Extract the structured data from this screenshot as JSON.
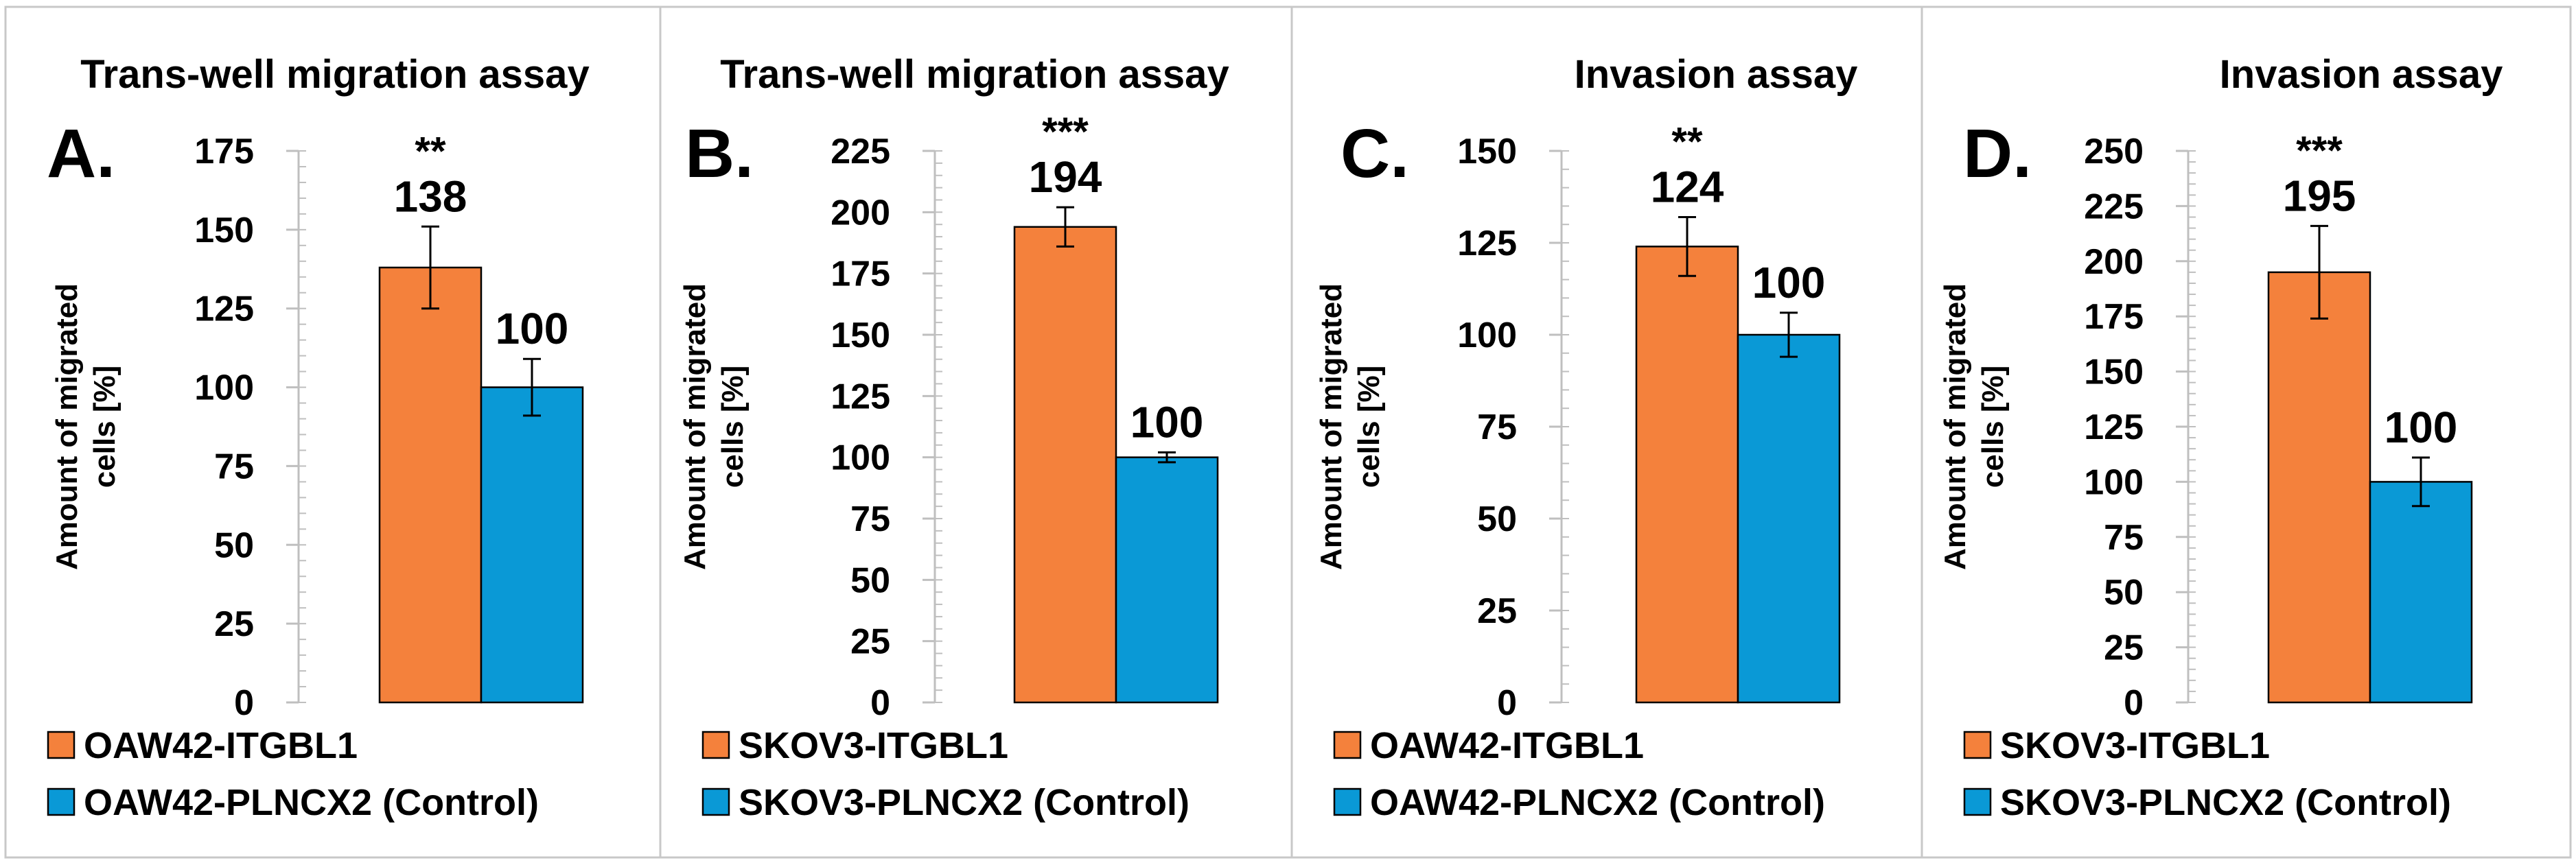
{
  "figure": {
    "colors": {
      "itgbl1": "#F4813C",
      "control": "#0A99D6",
      "axis": "#BFBFBF",
      "panel_border": "#C8C8C8",
      "text": "#000000"
    }
  },
  "chart_data": [
    {
      "type": "bar",
      "panel_letter": "A.",
      "title": "Trans-well migration assay",
      "ylabel_line1": "Amount of migrated",
      "ylabel_line2": "cells [%]",
      "ylim": [
        0,
        175
      ],
      "yticks": [
        0,
        25,
        50,
        75,
        100,
        125,
        150,
        175
      ],
      "series": [
        {
          "name": "OAW42-ITGBL1",
          "color": "#F4813C",
          "value": 138,
          "error": 13,
          "label": "138",
          "significance": "**"
        },
        {
          "name": "OAW42-PLNCX2 (Control)",
          "color": "#0A99D6",
          "value": 100,
          "error": 9,
          "label": "100",
          "significance": ""
        }
      ]
    },
    {
      "type": "bar",
      "panel_letter": "B.",
      "title": "Trans-well migration assay",
      "ylabel_line1": "Amount of migrated",
      "ylabel_line2": "cells [%]",
      "ylim": [
        0,
        225
      ],
      "yticks": [
        0,
        25,
        50,
        75,
        100,
        125,
        150,
        175,
        200,
        225
      ],
      "series": [
        {
          "name": "SKOV3-ITGBL1",
          "color": "#F4813C",
          "value": 194,
          "error": 8,
          "label": "194",
          "significance": "***"
        },
        {
          "name": "SKOV3-PLNCX2 (Control)",
          "color": "#0A99D6",
          "value": 100,
          "error": 2,
          "label": "100",
          "significance": ""
        }
      ]
    },
    {
      "type": "bar",
      "panel_letter": "C.",
      "title": "Invasion assay",
      "ylabel_line1": "Amount of migrated",
      "ylabel_line2": "cells [%]",
      "ylim": [
        0,
        150
      ],
      "yticks": [
        0,
        25,
        50,
        75,
        100,
        125,
        150
      ],
      "series": [
        {
          "name": "OAW42-ITGBL1",
          "color": "#F4813C",
          "value": 124,
          "error": 8,
          "label": "124",
          "significance": "**"
        },
        {
          "name": "OAW42-PLNCX2 (Control)",
          "color": "#0A99D6",
          "value": 100,
          "error": 6,
          "label": "100",
          "significance": ""
        }
      ]
    },
    {
      "type": "bar",
      "panel_letter": "D.",
      "title": "Invasion assay",
      "ylabel_line1": "Amount of migrated",
      "ylabel_line2": "cells [%]",
      "ylim": [
        0,
        250
      ],
      "yticks": [
        0,
        25,
        50,
        75,
        100,
        125,
        150,
        175,
        200,
        225,
        250
      ],
      "series": [
        {
          "name": "SKOV3-ITGBL1",
          "color": "#F4813C",
          "value": 195,
          "error": 21,
          "label": "195",
          "significance": "***"
        },
        {
          "name": "SKOV3-PLNCX2 (Control)",
          "color": "#0A99D6",
          "value": 100,
          "error": 11,
          "label": "100",
          "significance": ""
        }
      ]
    }
  ]
}
